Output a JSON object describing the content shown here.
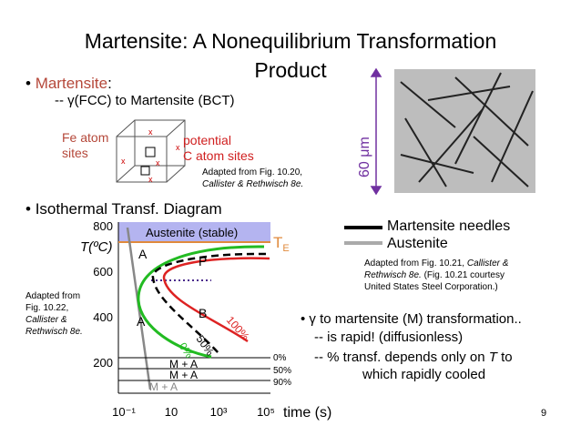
{
  "header": {
    "title_line1": "Martensite:  A Nonequilibrium Transformation",
    "title_line2": "Product"
  },
  "bullet1": {
    "term": "Martensite",
    "punct": ":",
    "sub": "-- γ(FCC) to Martensite (BCT)"
  },
  "cell": {
    "fe_line1": "Fe atom",
    "fe_line2": "sites",
    "c_line1": "potential",
    "c_line2": "C atom sites",
    "credit_line1": "Adapted from Fig. 10.20,",
    "credit_line2": "Callister & Rethwisch 8e."
  },
  "micrograph": {
    "scale": "60 μm"
  },
  "bullet2": {
    "text": "Isothermal Transf. Diagram"
  },
  "legend": {
    "needles": "Martensite needles",
    "austenite": "Austenite"
  },
  "credit_right": {
    "line1": "Adapted from Fig. 10.21,",
    "line1_italic": "Callister &",
    "line2": "Rethwisch 8e.",
    "line2_rest": "(Fig. 10.21 courtesy",
    "line3": "United States Steel Corporation.)"
  },
  "credit_left": {
    "line1": "Adapted from",
    "line2": "Fig. 10.22,",
    "line3": "Callister &",
    "line4": "Rethwisch 8e."
  },
  "diagram": {
    "y_label": "T(ºC)",
    "y_ticks": [
      800,
      600,
      400,
      200
    ],
    "band": "Austenite (stable)",
    "te_main": "T",
    "te_sub": "E",
    "regions": [
      "A",
      "P",
      "A",
      "B"
    ],
    "curve_labels": [
      "100%",
      "50%",
      "0%"
    ],
    "ma": [
      "M + A",
      "M + A",
      "M + A"
    ],
    "ms_levels": [
      "0%",
      "50%",
      "90%"
    ],
    "x_ticks": [
      "10⁻¹",
      "10",
      "10³",
      "10⁵"
    ],
    "x_label": "time (s)"
  },
  "bullet3": {
    "line1": "γ to martensite (M) transformation..",
    "line2": "-- is rapid! (diffusionless)",
    "line3": "-- % transf. depends only on",
    "line3_var": "T",
    "line3_end": "to",
    "line4": "which rapidly cooled"
  },
  "page_number": "9"
}
